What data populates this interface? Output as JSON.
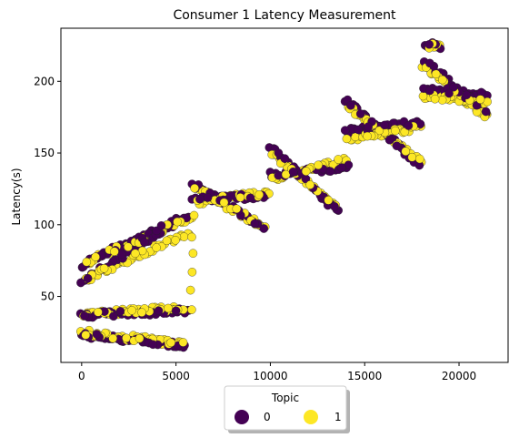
{
  "chart_data": {
    "type": "scatter",
    "title": "Consumer 1 Latency Measurement",
    "xlabel": "",
    "ylabel": "Latency(s)",
    "xlim": [
      -1100,
      22600
    ],
    "ylim": [
      4,
      237
    ],
    "xticks": [
      0,
      5000,
      10000,
      15000,
      20000
    ],
    "yticks": [
      50,
      100,
      150,
      200
    ],
    "grid": false,
    "legend": {
      "title": "Topic",
      "placement": "bottom-center",
      "entries": [
        "0",
        "1"
      ]
    },
    "colors": {
      "0": "#440154",
      "1": "#fde725",
      "edge": "#222222"
    },
    "series": [
      {
        "name": "0",
        "segments": [
          {
            "x": [
              0,
              5500
            ],
            "y": [
              23,
              16
            ]
          },
          {
            "x": [
              0,
              5700
            ],
            "y": [
              37,
              40
            ]
          },
          {
            "x": [
              0,
              4800
            ],
            "y": [
              60,
              100
            ]
          },
          {
            "x": [
              0,
              5700
            ],
            "y": [
              72,
              107
            ]
          },
          {
            "x": [
              5900,
              9600
            ],
            "y": [
              128,
              99
            ]
          },
          {
            "x": [
              5900,
              9800
            ],
            "y": [
              118,
              120
            ]
          },
          {
            "x": [
              10000,
              13600
            ],
            "y": [
              155,
              108
            ]
          },
          {
            "x": [
              10000,
              14100
            ],
            "y": [
              135,
              140
            ]
          },
          {
            "x": [
              14000,
              17900
            ],
            "y": [
              187,
              142
            ]
          },
          {
            "x": [
              14000,
              18000
            ],
            "y": [
              165,
              172
            ]
          },
          {
            "x": [
              18100,
              21500
            ],
            "y": [
              215,
              178
            ]
          },
          {
            "x": [
              18100,
              21500
            ],
            "y": [
              195,
              190
            ]
          },
          {
            "x": [
              18200,
              19000
            ],
            "y": [
              226,
              224
            ]
          }
        ]
      },
      {
        "name": "1",
        "segments": [
          {
            "x": [
              0,
              5400
            ],
            "y": [
              25,
              17
            ]
          },
          {
            "x": [
              100,
              5600
            ],
            "y": [
              38,
              42
            ]
          },
          {
            "x": [
              200,
              5700
            ],
            "y": [
              62,
              95
            ]
          },
          {
            "x": [
              300,
              5800
            ],
            "y": [
              74,
              105
            ]
          },
          {
            "x": [
              6000,
              9700
            ],
            "y": [
              126,
              98
            ]
          },
          {
            "x": [
              6100,
              9900
            ],
            "y": [
              116,
              122
            ]
          },
          {
            "x": [
              10100,
              13500
            ],
            "y": [
              150,
              112
            ]
          },
          {
            "x": [
              10100,
              14000
            ],
            "y": [
              132,
              145
            ]
          },
          {
            "x": [
              14100,
              18000
            ],
            "y": [
              182,
              144
            ]
          },
          {
            "x": [
              14100,
              18000
            ],
            "y": [
              160,
              168
            ]
          },
          {
            "x": [
              18100,
              21500
            ],
            "y": [
              210,
              175
            ]
          },
          {
            "x": [
              18100,
              21500
            ],
            "y": [
              190,
              185
            ]
          },
          {
            "x": [
              18300,
              19000
            ],
            "y": [
              225,
              224
            ]
          },
          {
            "x": [
              5800,
              5900
            ],
            "y": [
              40,
              105
            ]
          }
        ]
      }
    ]
  }
}
